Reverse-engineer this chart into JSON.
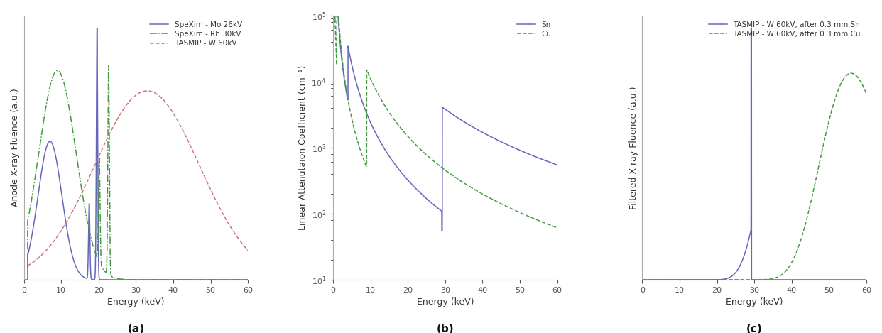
{
  "fig_width": 12.42,
  "fig_height": 4.69,
  "panel_a": {
    "title": "(a)",
    "xlabel": "Energy (keV)",
    "ylabel": "Anode X-ray Fluence (a.u.)",
    "xlim": [
      0,
      60
    ],
    "lines": [
      {
        "label": "SpeXim - Mo 26kV",
        "color": "#6666bb",
        "linestyle": "solid",
        "linewidth": 1.1
      },
      {
        "label": "SpeXim - Rh 30kV",
        "color": "#449944",
        "linestyle": "dashdot",
        "linewidth": 1.1
      },
      {
        "label": "TASMIP - W 60kV",
        "color": "#cc7777",
        "linestyle": "dashed",
        "linewidth": 1.1
      }
    ]
  },
  "panel_b": {
    "title": "(b)",
    "xlabel": "Energy (keV)",
    "ylabel": "Linear Attenutaion Coefficient (cm⁻¹)",
    "xlim": [
      0,
      60
    ],
    "ylim": [
      10,
      100000
    ],
    "lines": [
      {
        "label": "Sn",
        "color": "#6666bb",
        "linestyle": "solid",
        "linewidth": 1.1
      },
      {
        "label": "Cu",
        "color": "#449944",
        "linestyle": "dashed",
        "linewidth": 1.1
      }
    ]
  },
  "panel_c": {
    "title": "(c)",
    "xlabel": "Energy (keV)",
    "ylabel": "Filtered X-ray Fluence (a.u.)",
    "xlim": [
      0,
      60
    ],
    "lines": [
      {
        "label": "TASMIP - W 60kV, after 0.3 mm Sn",
        "color": "#6666bb",
        "linestyle": "solid",
        "linewidth": 1.1
      },
      {
        "label": "TASMIP - W 60kV, after 0.3 mm Cu",
        "color": "#449944",
        "linestyle": "dashed",
        "linewidth": 1.1
      }
    ]
  },
  "bg_color": "#ffffff",
  "label_color": "#333333",
  "tick_color": "#555555"
}
